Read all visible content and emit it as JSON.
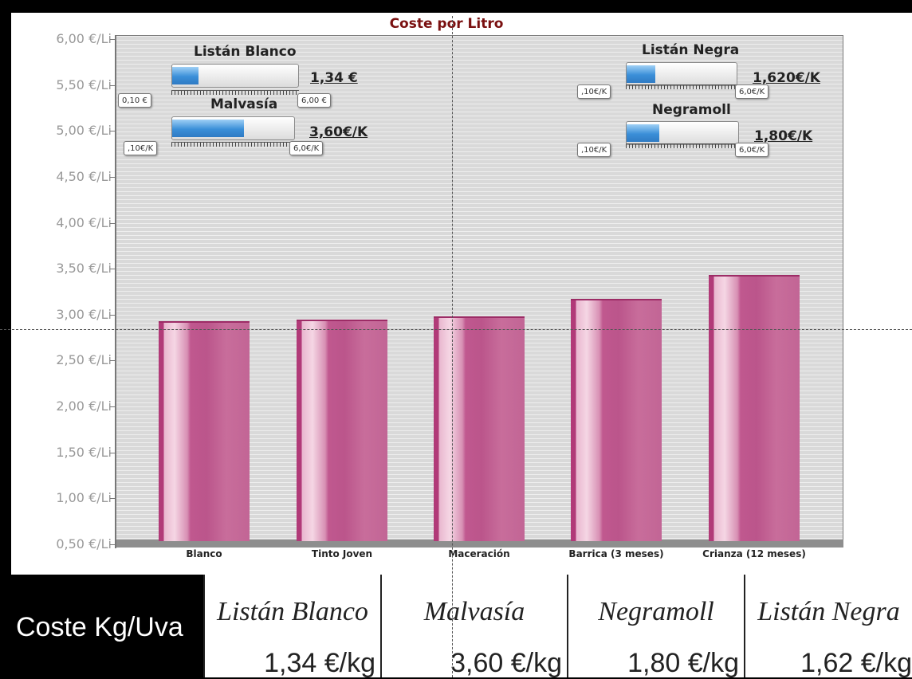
{
  "chart_data": {
    "type": "bar",
    "title": "Coste por Litro",
    "categories": [
      "Blanco",
      "Tinto Joven",
      "Maceración",
      "Barrica (3 meses)",
      "Crianza (12 meses)"
    ],
    "values": [
      2.93,
      2.95,
      2.98,
      3.17,
      3.43
    ],
    "yticks": [
      "6,00 €/Li",
      "5,50 €/Li",
      "5,00 €/Li",
      "4,50 €/Li",
      "4,00 €/Li",
      "3,50 €/Li",
      "3,00 €/Li",
      "2,50 €/Li",
      "2,00 €/Li",
      "1,50 €/Li",
      "1,00 €/Li",
      "0,50 €/Li"
    ],
    "ylim": [
      0.5,
      6.0
    ],
    "grid": true,
    "colors": {
      "bar": "#c0588f",
      "title": "#7a1010"
    }
  },
  "gauges": [
    {
      "name": "Listán Blanco",
      "value_text": "1,34 €",
      "min_label": "0,10 €",
      "max_label": "6,00 €",
      "fraction": 0.21
    },
    {
      "name": "Malvasía",
      "value_text": "3,60€/K",
      "min_label": ",10€/K",
      "max_label": "6,0€/K",
      "fraction": 0.59
    },
    {
      "name": "Listán Negra",
      "value_text": "1,620€/K",
      "min_label": ",10€/K",
      "max_label": "6,0€/K",
      "fraction": 0.26
    },
    {
      "name": "Negramoll",
      "value_text": "1,80€/K",
      "min_label": ",10€/K",
      "max_label": "6,0€/K",
      "fraction": 0.29
    }
  ],
  "table": {
    "label": "Coste Kg/Uva",
    "cells": [
      {
        "name": "Listán Blanco",
        "value": "1,34 €/kg"
      },
      {
        "name": "Malvasía",
        "value": "3,60 €/kg"
      },
      {
        "name": "Negramoll",
        "value": "1,80 €/kg"
      },
      {
        "name": "Listán Negra",
        "value": "1,62 €/kg"
      }
    ]
  }
}
